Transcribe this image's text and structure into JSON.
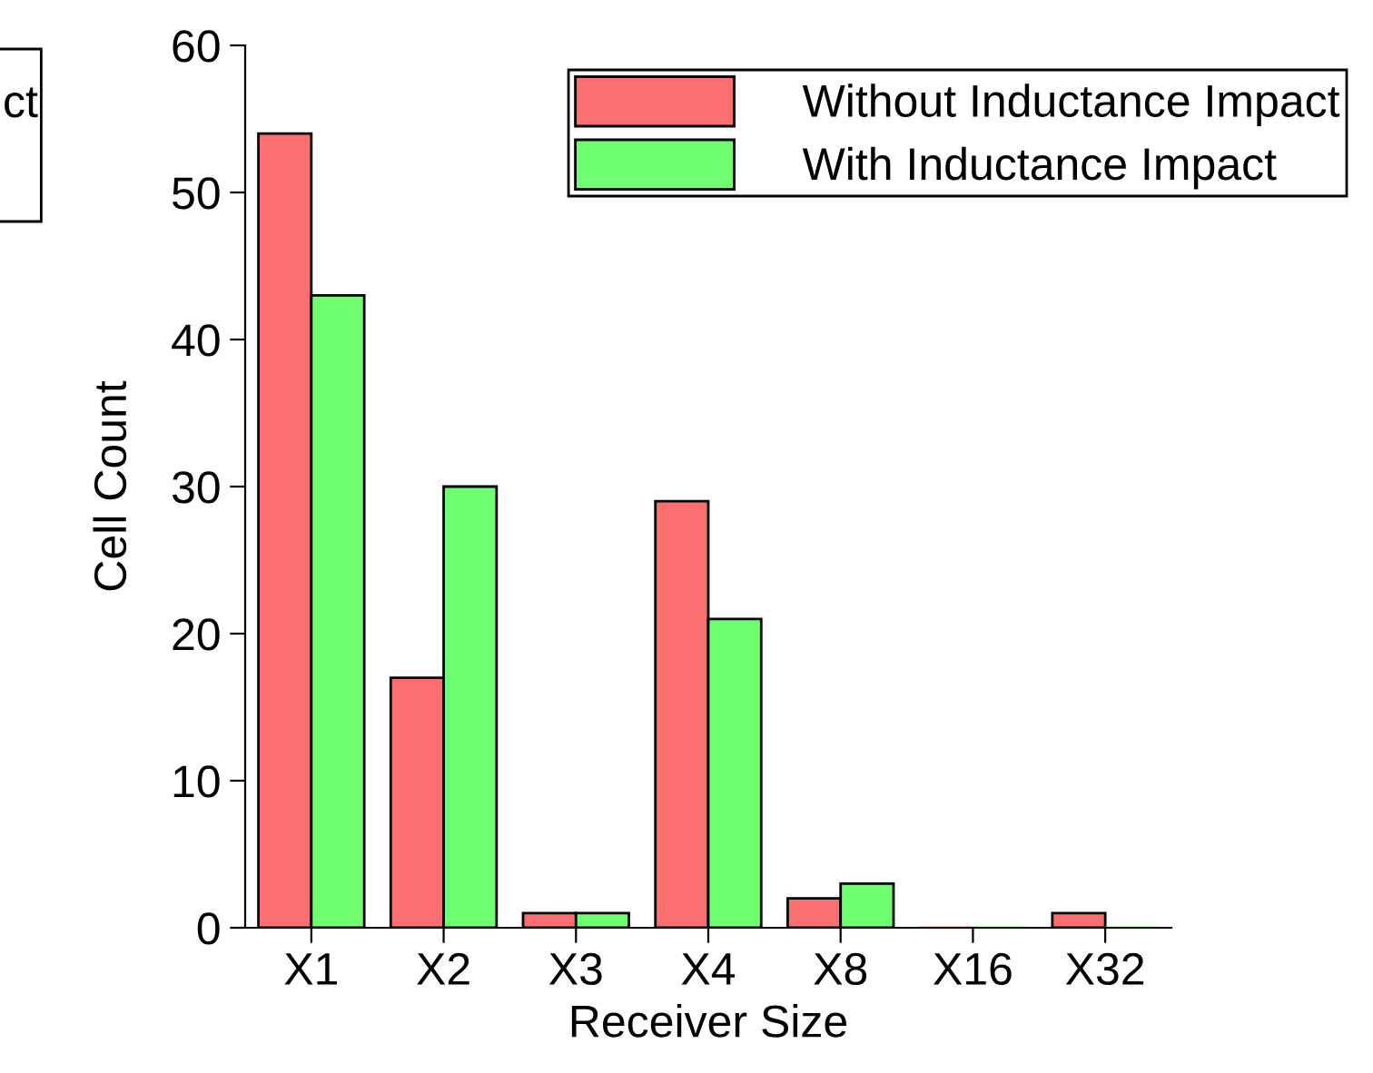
{
  "chart_data": {
    "type": "bar",
    "xlabel": "Receiver Size",
    "ylabel": "Cell Count",
    "categories": [
      "X1",
      "X2",
      "X3",
      "X4",
      "X8",
      "X16",
      "X32"
    ],
    "series": [
      {
        "name": "Without Inductance Impact",
        "color": "#fa7070",
        "values": [
          54,
          17,
          1,
          29,
          2,
          0,
          1
        ]
      },
      {
        "name": "With Inductance Impact",
        "color": "#70ff70",
        "values": [
          43,
          30,
          1,
          21,
          3,
          0,
          0
        ]
      }
    ],
    "ylim": [
      0,
      60
    ],
    "yticks": [
      0,
      10,
      20,
      30,
      40,
      50,
      60
    ],
    "legend": "top right",
    "grid": false,
    "annotations": [
      "ct"
    ]
  }
}
